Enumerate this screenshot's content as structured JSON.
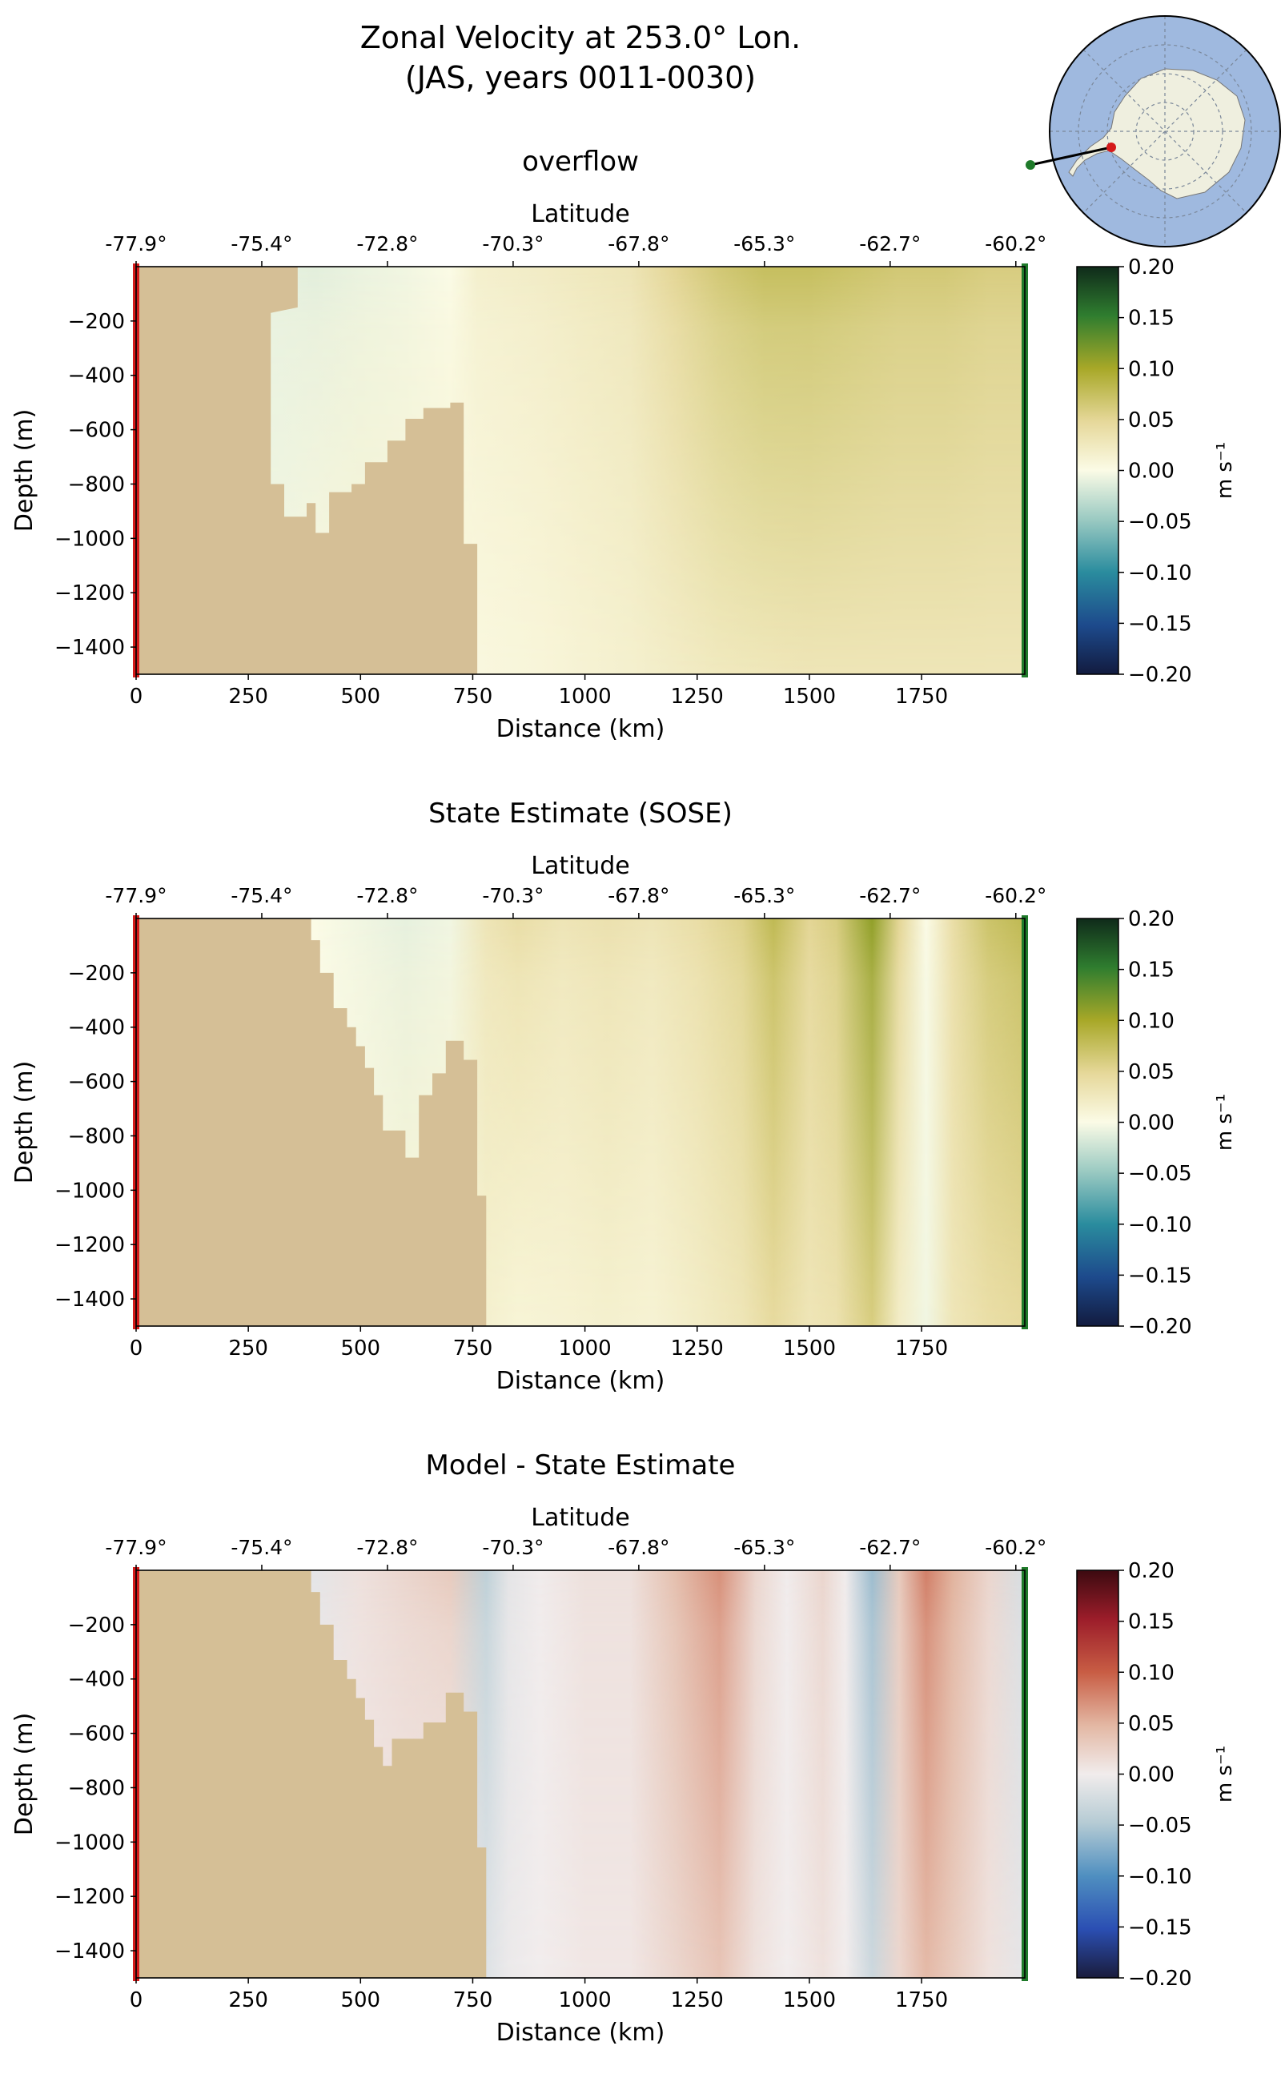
{
  "figure": {
    "title_line1": "Zonal Velocity at 253.0° Lon.",
    "title_line2": "(JAS, years 0011-0030)"
  },
  "colors": {
    "land": "#d5bf96",
    "ocean_map": "#9fb9df",
    "antarctica_map": "#efefdf",
    "start_marker": "#d51a1a",
    "end_marker": "#1f7a2a",
    "section_line": "#000000"
  },
  "inset_map": {
    "projection": "south-polar-stereographic",
    "marker_start_color": "red",
    "marker_end_color": "green"
  },
  "chart_data": [
    {
      "type": "heatmap",
      "title": "overflow",
      "xlabel": "Distance (km)",
      "ylabel": "Depth (m)",
      "top_axis_label": "Latitude",
      "top_ticks": [
        "-77.9°",
        "-75.4°",
        "-72.8°",
        "-70.3°",
        "-67.8°",
        "-65.3°",
        "-62.7°",
        "-60.2°"
      ],
      "top_tick_positions_km": [
        0,
        280,
        560,
        840,
        1120,
        1400,
        1680,
        1960
      ],
      "x_ticks": [
        0,
        250,
        500,
        750,
        1000,
        1250,
        1500,
        1750
      ],
      "y_ticks": [
        -200,
        -400,
        -600,
        -800,
        -1000,
        -1200,
        -1400
      ],
      "xlim": [
        0,
        1980
      ],
      "ylim": [
        -1500,
        0
      ],
      "colormap": "delta-green",
      "colorbar": {
        "label": "m s⁻¹",
        "range": [
          -0.2,
          0.2
        ],
        "ticks": [
          "0.20",
          "0.15",
          "0.10",
          "0.05",
          "0.00",
          "−0.05",
          "−0.10",
          "−0.15",
          "−0.20"
        ]
      },
      "bathymetry_km_depth": [
        [
          0,
          0
        ],
        [
          360,
          0
        ],
        [
          360,
          -150
        ],
        [
          300,
          -170
        ],
        [
          300,
          -800
        ],
        [
          330,
          -800
        ],
        [
          330,
          -920
        ],
        [
          380,
          -920
        ],
        [
          380,
          -870
        ],
        [
          400,
          -870
        ],
        [
          400,
          -980
        ],
        [
          430,
          -980
        ],
        [
          430,
          -830
        ],
        [
          480,
          -830
        ],
        [
          480,
          -800
        ],
        [
          510,
          -800
        ],
        [
          510,
          -720
        ],
        [
          560,
          -720
        ],
        [
          560,
          -640
        ],
        [
          600,
          -640
        ],
        [
          600,
          -560
        ],
        [
          640,
          -560
        ],
        [
          640,
          -520
        ],
        [
          700,
          -520
        ],
        [
          700,
          -500
        ],
        [
          730,
          -500
        ],
        [
          730,
          -1020
        ],
        [
          760,
          -1020
        ],
        [
          760,
          -1500
        ],
        [
          0,
          -1500
        ]
      ],
      "column_profiles": {
        "x_km": [
          0,
          300,
          400,
          500,
          600,
          700,
          760,
          900,
          1000,
          1100,
          1200,
          1300,
          1400,
          1500,
          1600,
          1700,
          1800,
          1900,
          1975
        ],
        "surface_ms": [
          0,
          -0.01,
          -0.012,
          -0.008,
          -0.005,
          0.0,
          0.015,
          0.02,
          0.025,
          0.03,
          0.05,
          0.065,
          0.075,
          0.075,
          0.07,
          0.065,
          0.065,
          0.06,
          0.06
        ],
        "bottom_ms": [
          0,
          -0.005,
          0.005,
          0.01,
          0.01,
          0.01,
          0.005,
          0.008,
          0.012,
          0.015,
          0.02,
          0.025,
          0.028,
          0.03,
          0.03,
          0.03,
          0.03,
          0.03,
          0.03
        ]
      }
    },
    {
      "type": "heatmap",
      "title": "State Estimate (SOSE)",
      "xlabel": "Distance (km)",
      "ylabel": "Depth (m)",
      "top_axis_label": "Latitude",
      "top_ticks": [
        "-77.9°",
        "-75.4°",
        "-72.8°",
        "-70.3°",
        "-67.8°",
        "-65.3°",
        "-62.7°",
        "-60.2°"
      ],
      "top_tick_positions_km": [
        0,
        280,
        560,
        840,
        1120,
        1400,
        1680,
        1960
      ],
      "x_ticks": [
        0,
        250,
        500,
        750,
        1000,
        1250,
        1500,
        1750
      ],
      "y_ticks": [
        -200,
        -400,
        -600,
        -800,
        -1000,
        -1200,
        -1400
      ],
      "xlim": [
        0,
        1980
      ],
      "ylim": [
        -1500,
        0
      ],
      "colormap": "delta-green",
      "colorbar": {
        "label": "m s⁻¹",
        "range": [
          -0.2,
          0.2
        ],
        "ticks": [
          "0.20",
          "0.15",
          "0.10",
          "0.05",
          "0.00",
          "−0.05",
          "−0.10",
          "−0.15",
          "−0.20"
        ]
      },
      "bathymetry_km_depth": [
        [
          0,
          0
        ],
        [
          390,
          0
        ],
        [
          390,
          -80
        ],
        [
          410,
          -80
        ],
        [
          410,
          -200
        ],
        [
          440,
          -200
        ],
        [
          440,
          -330
        ],
        [
          470,
          -330
        ],
        [
          470,
          -400
        ],
        [
          490,
          -400
        ],
        [
          490,
          -470
        ],
        [
          510,
          -470
        ],
        [
          510,
          -550
        ],
        [
          530,
          -550
        ],
        [
          530,
          -650
        ],
        [
          550,
          -650
        ],
        [
          550,
          -780
        ],
        [
          600,
          -780
        ],
        [
          600,
          -880
        ],
        [
          630,
          -880
        ],
        [
          630,
          -650
        ],
        [
          660,
          -650
        ],
        [
          660,
          -570
        ],
        [
          690,
          -570
        ],
        [
          690,
          -450
        ],
        [
          730,
          -450
        ],
        [
          730,
          -520
        ],
        [
          760,
          -520
        ],
        [
          760,
          -1020
        ],
        [
          780,
          -1020
        ],
        [
          780,
          -1500
        ],
        [
          0,
          -1500
        ]
      ],
      "column_profiles": {
        "x_km": [
          0,
          400,
          500,
          600,
          700,
          780,
          850,
          950,
          1050,
          1150,
          1250,
          1350,
          1420,
          1500,
          1560,
          1640,
          1700,
          1760,
          1820,
          1900,
          1975
        ],
        "surface_ms": [
          0,
          0.0,
          -0.005,
          -0.01,
          -0.005,
          0.03,
          0.04,
          0.03,
          0.035,
          0.03,
          0.04,
          0.055,
          0.08,
          0.05,
          0.06,
          0.11,
          0.05,
          0.0,
          0.04,
          0.07,
          0.08
        ],
        "bottom_ms": [
          0,
          0.0,
          0.005,
          0.01,
          0.01,
          0.015,
          0.01,
          0.012,
          0.015,
          0.012,
          0.02,
          0.03,
          0.045,
          0.03,
          0.035,
          0.06,
          0.02,
          -0.005,
          0.03,
          0.04,
          0.045
        ]
      }
    },
    {
      "type": "heatmap",
      "title": "Model - State Estimate",
      "xlabel": "Distance (km)",
      "ylabel": "Depth (m)",
      "top_axis_label": "Latitude",
      "top_ticks": [
        "-77.9°",
        "-75.4°",
        "-72.8°",
        "-70.3°",
        "-67.8°",
        "-65.3°",
        "-62.7°",
        "-60.2°"
      ],
      "top_tick_positions_km": [
        0,
        280,
        560,
        840,
        1120,
        1400,
        1680,
        1960
      ],
      "x_ticks": [
        0,
        250,
        500,
        750,
        1000,
        1250,
        1500,
        1750
      ],
      "y_ticks": [
        -200,
        -400,
        -600,
        -800,
        -1000,
        -1200,
        -1400
      ],
      "xlim": [
        0,
        1980
      ],
      "ylim": [
        -1500,
        0
      ],
      "colormap": "balance",
      "colorbar": {
        "label": "m s⁻¹",
        "range": [
          -0.2,
          0.2
        ],
        "ticks": [
          "0.20",
          "0.15",
          "0.10",
          "0.05",
          "0.00",
          "−0.05",
          "−0.10",
          "−0.15",
          "−0.20"
        ]
      },
      "bathymetry_km_depth": [
        [
          0,
          0
        ],
        [
          390,
          0
        ],
        [
          390,
          -80
        ],
        [
          410,
          -80
        ],
        [
          410,
          -200
        ],
        [
          440,
          -200
        ],
        [
          440,
          -330
        ],
        [
          470,
          -330
        ],
        [
          470,
          -400
        ],
        [
          490,
          -400
        ],
        [
          490,
          -470
        ],
        [
          510,
          -470
        ],
        [
          510,
          -550
        ],
        [
          530,
          -550
        ],
        [
          530,
          -650
        ],
        [
          550,
          -650
        ],
        [
          550,
          -720
        ],
        [
          570,
          -720
        ],
        [
          570,
          -620
        ],
        [
          640,
          -620
        ],
        [
          640,
          -560
        ],
        [
          690,
          -560
        ],
        [
          690,
          -450
        ],
        [
          730,
          -450
        ],
        [
          730,
          -520
        ],
        [
          760,
          -520
        ],
        [
          760,
          -1020
        ],
        [
          780,
          -1020
        ],
        [
          780,
          -1500
        ],
        [
          0,
          -1500
        ]
      ],
      "column_profiles": {
        "x_km": [
          0,
          400,
          500,
          600,
          700,
          780,
          830,
          900,
          1000,
          1100,
          1200,
          1300,
          1380,
          1450,
          1530,
          1580,
          1640,
          1700,
          1760,
          1820,
          1900,
          1975
        ],
        "surface_ms": [
          0,
          -0.01,
          0.01,
          0.02,
          0.03,
          -0.04,
          -0.01,
          0.0,
          0.01,
          0.01,
          0.04,
          0.07,
          0.02,
          0.0,
          0.02,
          0.0,
          -0.06,
          0.03,
          0.08,
          0.05,
          0.02,
          -0.02
        ],
        "bottom_ms": [
          0,
          0.0,
          0.005,
          0.005,
          0.0,
          -0.015,
          -0.005,
          0.0,
          0.005,
          0.005,
          0.02,
          0.035,
          0.01,
          0.0,
          0.01,
          0.0,
          -0.03,
          0.02,
          0.045,
          0.03,
          0.01,
          -0.01
        ]
      }
    }
  ]
}
